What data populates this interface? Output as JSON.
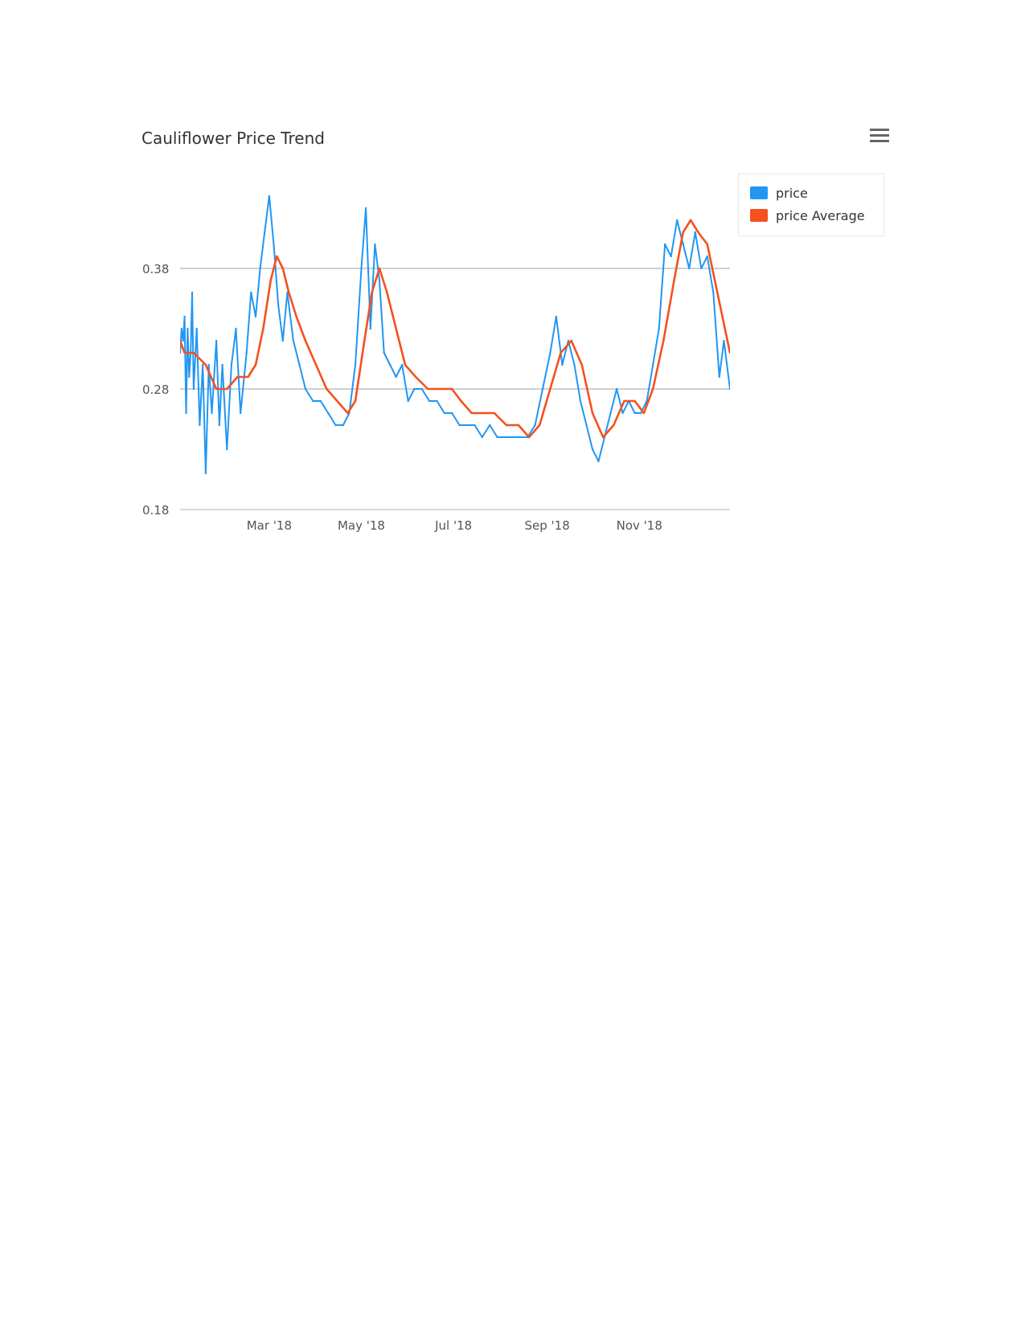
{
  "chart_data": {
    "type": "line",
    "title": "Cauliflower Price Trend",
    "xlabel": "",
    "ylabel": "",
    "x_start": "2018-01-01",
    "x_end": "2018-12-31",
    "xlim": [
      "2018-01-01",
      "2018-12-31"
    ],
    "ylim": [
      0.18,
      0.39
    ],
    "yticks": [
      0.18,
      0.28,
      0.38
    ],
    "ytick_labels": [
      "0.18",
      "0.28",
      "0.38"
    ],
    "xticks": [
      "2018-03-01",
      "2018-05-01",
      "2018-07-01",
      "2018-09-01",
      "2018-11-01"
    ],
    "xtick_labels": [
      "Mar '18",
      "May '18",
      "Jul '18",
      "Sep '18",
      "Nov '18"
    ],
    "grid": true,
    "legend_position": "top-right",
    "series": [
      {
        "name": "price",
        "color": "#2196f3",
        "points": [
          [
            "2018-01-01",
            0.31
          ],
          [
            "2018-01-02",
            0.33
          ],
          [
            "2018-01-03",
            0.32
          ],
          [
            "2018-01-04",
            0.34
          ],
          [
            "2018-01-05",
            0.26
          ],
          [
            "2018-01-06",
            0.33
          ],
          [
            "2018-01-07",
            0.29
          ],
          [
            "2018-01-08",
            0.31
          ],
          [
            "2018-01-09",
            0.36
          ],
          [
            "2018-01-10",
            0.28
          ],
          [
            "2018-01-12",
            0.33
          ],
          [
            "2018-01-14",
            0.25
          ],
          [
            "2018-01-16",
            0.3
          ],
          [
            "2018-01-18",
            0.21
          ],
          [
            "2018-01-20",
            0.3
          ],
          [
            "2018-01-22",
            0.26
          ],
          [
            "2018-01-25",
            0.32
          ],
          [
            "2018-01-27",
            0.25
          ],
          [
            "2018-01-29",
            0.3
          ],
          [
            "2018-02-01",
            0.23
          ],
          [
            "2018-02-04",
            0.3
          ],
          [
            "2018-02-07",
            0.33
          ],
          [
            "2018-02-10",
            0.26
          ],
          [
            "2018-02-14",
            0.31
          ],
          [
            "2018-02-17",
            0.36
          ],
          [
            "2018-02-20",
            0.34
          ],
          [
            "2018-02-23",
            0.38
          ],
          [
            "2018-02-26",
            0.41
          ],
          [
            "2018-03-01",
            0.44
          ],
          [
            "2018-03-04",
            0.4
          ],
          [
            "2018-03-07",
            0.35
          ],
          [
            "2018-03-10",
            0.32
          ],
          [
            "2018-03-13",
            0.36
          ],
          [
            "2018-03-17",
            0.32
          ],
          [
            "2018-03-21",
            0.3
          ],
          [
            "2018-03-25",
            0.28
          ],
          [
            "2018-03-30",
            0.27
          ],
          [
            "2018-04-04",
            0.27
          ],
          [
            "2018-04-09",
            0.26
          ],
          [
            "2018-04-14",
            0.25
          ],
          [
            "2018-04-19",
            0.25
          ],
          [
            "2018-04-23",
            0.26
          ],
          [
            "2018-04-27",
            0.3
          ],
          [
            "2018-05-01",
            0.38
          ],
          [
            "2018-05-04",
            0.43
          ],
          [
            "2018-05-07",
            0.33
          ],
          [
            "2018-05-10",
            0.4
          ],
          [
            "2018-05-13",
            0.37
          ],
          [
            "2018-05-16",
            0.31
          ],
          [
            "2018-05-20",
            0.3
          ],
          [
            "2018-05-24",
            0.29
          ],
          [
            "2018-05-28",
            0.3
          ],
          [
            "2018-06-01",
            0.27
          ],
          [
            "2018-06-05",
            0.28
          ],
          [
            "2018-06-10",
            0.28
          ],
          [
            "2018-06-15",
            0.27
          ],
          [
            "2018-06-20",
            0.27
          ],
          [
            "2018-06-25",
            0.26
          ],
          [
            "2018-06-30",
            0.26
          ],
          [
            "2018-07-05",
            0.25
          ],
          [
            "2018-07-10",
            0.25
          ],
          [
            "2018-07-15",
            0.25
          ],
          [
            "2018-07-20",
            0.24
          ],
          [
            "2018-07-25",
            0.25
          ],
          [
            "2018-07-30",
            0.24
          ],
          [
            "2018-08-04",
            0.24
          ],
          [
            "2018-08-09",
            0.24
          ],
          [
            "2018-08-14",
            0.24
          ],
          [
            "2018-08-19",
            0.24
          ],
          [
            "2018-08-24",
            0.25
          ],
          [
            "2018-08-29",
            0.28
          ],
          [
            "2018-09-03",
            0.31
          ],
          [
            "2018-09-07",
            0.34
          ],
          [
            "2018-09-11",
            0.3
          ],
          [
            "2018-09-15",
            0.32
          ],
          [
            "2018-09-19",
            0.3
          ],
          [
            "2018-09-23",
            0.27
          ],
          [
            "2018-09-27",
            0.25
          ],
          [
            "2018-10-01",
            0.23
          ],
          [
            "2018-10-05",
            0.22
          ],
          [
            "2018-10-09",
            0.24
          ],
          [
            "2018-10-13",
            0.26
          ],
          [
            "2018-10-17",
            0.28
          ],
          [
            "2018-10-21",
            0.26
          ],
          [
            "2018-10-25",
            0.27
          ],
          [
            "2018-10-29",
            0.26
          ],
          [
            "2018-11-02",
            0.26
          ],
          [
            "2018-11-06",
            0.27
          ],
          [
            "2018-11-10",
            0.3
          ],
          [
            "2018-11-14",
            0.33
          ],
          [
            "2018-11-18",
            0.4
          ],
          [
            "2018-11-22",
            0.39
          ],
          [
            "2018-11-26",
            0.42
          ],
          [
            "2018-11-30",
            0.4
          ],
          [
            "2018-12-04",
            0.38
          ],
          [
            "2018-12-08",
            0.41
          ],
          [
            "2018-12-12",
            0.38
          ],
          [
            "2018-12-16",
            0.39
          ],
          [
            "2018-12-20",
            0.36
          ],
          [
            "2018-12-24",
            0.29
          ],
          [
            "2018-12-27",
            0.32
          ],
          [
            "2018-12-31",
            0.28
          ]
        ]
      },
      {
        "name": "price Average",
        "color": "#f4511e",
        "points": [
          [
            "2018-01-01",
            0.32
          ],
          [
            "2018-01-04",
            0.31
          ],
          [
            "2018-01-10",
            0.31
          ],
          [
            "2018-01-18",
            0.3
          ],
          [
            "2018-01-25",
            0.28
          ],
          [
            "2018-02-01",
            0.28
          ],
          [
            "2018-02-08",
            0.29
          ],
          [
            "2018-02-15",
            0.29
          ],
          [
            "2018-02-20",
            0.3
          ],
          [
            "2018-02-25",
            0.33
          ],
          [
            "2018-03-02",
            0.37
          ],
          [
            "2018-03-06",
            0.39
          ],
          [
            "2018-03-10",
            0.38
          ],
          [
            "2018-03-14",
            0.36
          ],
          [
            "2018-03-19",
            0.34
          ],
          [
            "2018-03-25",
            0.32
          ],
          [
            "2018-04-01",
            0.3
          ],
          [
            "2018-04-08",
            0.28
          ],
          [
            "2018-04-15",
            0.27
          ],
          [
            "2018-04-22",
            0.26
          ],
          [
            "2018-04-27",
            0.27
          ],
          [
            "2018-05-03",
            0.32
          ],
          [
            "2018-05-08",
            0.36
          ],
          [
            "2018-05-13",
            0.38
          ],
          [
            "2018-05-18",
            0.36
          ],
          [
            "2018-05-24",
            0.33
          ],
          [
            "2018-05-30",
            0.3
          ],
          [
            "2018-06-06",
            0.29
          ],
          [
            "2018-06-14",
            0.28
          ],
          [
            "2018-06-22",
            0.28
          ],
          [
            "2018-06-30",
            0.28
          ],
          [
            "2018-07-06",
            0.27
          ],
          [
            "2018-07-13",
            0.26
          ],
          [
            "2018-07-20",
            0.26
          ],
          [
            "2018-07-28",
            0.26
          ],
          [
            "2018-08-05",
            0.25
          ],
          [
            "2018-08-13",
            0.25
          ],
          [
            "2018-08-20",
            0.24
          ],
          [
            "2018-08-27",
            0.25
          ],
          [
            "2018-09-03",
            0.28
          ],
          [
            "2018-09-10",
            0.31
          ],
          [
            "2018-09-17",
            0.32
          ],
          [
            "2018-09-24",
            0.3
          ],
          [
            "2018-10-01",
            0.26
          ],
          [
            "2018-10-08",
            0.24
          ],
          [
            "2018-10-15",
            0.25
          ],
          [
            "2018-10-22",
            0.27
          ],
          [
            "2018-10-29",
            0.27
          ],
          [
            "2018-11-04",
            0.26
          ],
          [
            "2018-11-10",
            0.28
          ],
          [
            "2018-11-17",
            0.32
          ],
          [
            "2018-11-24",
            0.37
          ],
          [
            "2018-11-30",
            0.41
          ],
          [
            "2018-12-05",
            0.42
          ],
          [
            "2018-12-10",
            0.41
          ],
          [
            "2018-12-16",
            0.4
          ],
          [
            "2018-12-21",
            0.37
          ],
          [
            "2018-12-26",
            0.34
          ],
          [
            "2018-12-31",
            0.31
          ]
        ]
      }
    ]
  },
  "menu_icon": "hamburger-menu-icon"
}
